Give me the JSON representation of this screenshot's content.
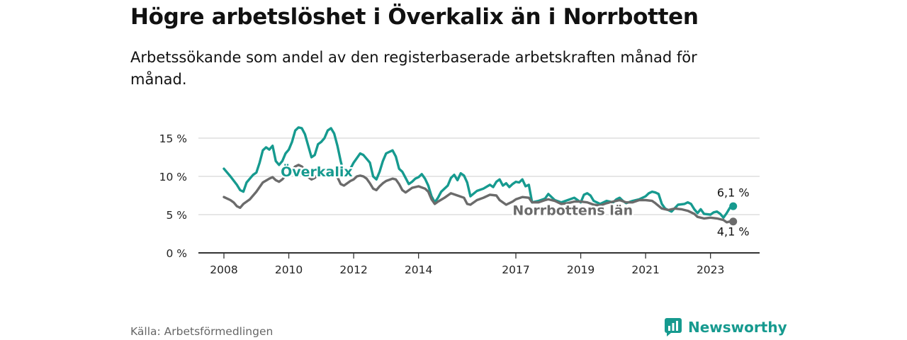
{
  "colors": {
    "overkalix": "#169a8f",
    "norrbotten": "#6b6b6b",
    "grid": "#d7d7d7",
    "axis": "#333333"
  },
  "source": "Källa: Arbetsförmedlingen",
  "brand": {
    "name": "Newsworthy",
    "icon": "newsworthy-logo-icon"
  },
  "chart_data": {
    "type": "line",
    "title": "Högre arbetslöshet i Överkalix än i Norrbotten",
    "subtitle": "Arbetssökande som andel av den registerbaserade arbetskraften månad för månad.",
    "xlabel": "",
    "ylabel": "",
    "x_ticks": [
      "2008",
      "2010",
      "2012",
      "2014",
      "2017",
      "2019",
      "2021",
      "2023"
    ],
    "x_tick_values": [
      2008,
      2010,
      2012,
      2014,
      2017,
      2019,
      2021,
      2023
    ],
    "xlim": [
      2008,
      2023.75
    ],
    "y_ticks": [
      "0 %",
      "5 %",
      "10 %",
      "15 %"
    ],
    "y_tick_values": [
      0,
      5,
      10,
      15
    ],
    "ylim": [
      0,
      15
    ],
    "grid": true,
    "end_labels": {
      "overkalix": "6,1 %",
      "norrbotten": "4,1 %"
    },
    "series": [
      {
        "key": "overkalix",
        "name": "Överkalix",
        "points": [
          [
            2008.0,
            11.0
          ],
          [
            2008.2,
            10.0
          ],
          [
            2008.4,
            8.9
          ],
          [
            2008.5,
            8.2
          ],
          [
            2008.6,
            8.0
          ],
          [
            2008.7,
            9.2
          ],
          [
            2008.9,
            10.2
          ],
          [
            2009.0,
            10.5
          ],
          [
            2009.1,
            11.8
          ],
          [
            2009.2,
            13.4
          ],
          [
            2009.3,
            13.8
          ],
          [
            2009.4,
            13.5
          ],
          [
            2009.5,
            14.0
          ],
          [
            2009.6,
            12.0
          ],
          [
            2009.7,
            11.5
          ],
          [
            2009.8,
            12.0
          ],
          [
            2009.9,
            13.0
          ],
          [
            2010.0,
            13.5
          ],
          [
            2010.1,
            14.5
          ],
          [
            2010.2,
            16.0
          ],
          [
            2010.3,
            16.4
          ],
          [
            2010.4,
            16.3
          ],
          [
            2010.5,
            15.5
          ],
          [
            2010.6,
            14.0
          ],
          [
            2010.7,
            12.5
          ],
          [
            2010.8,
            12.8
          ],
          [
            2010.9,
            14.2
          ],
          [
            2011.0,
            14.5
          ],
          [
            2011.1,
            15.0
          ],
          [
            2011.2,
            16.0
          ],
          [
            2011.3,
            16.3
          ],
          [
            2011.4,
            15.6
          ],
          [
            2011.5,
            14.0
          ],
          [
            2011.6,
            12.0
          ],
          [
            2011.7,
            10.3
          ],
          [
            2011.8,
            10.6
          ],
          [
            2011.9,
            11.0
          ],
          [
            2012.0,
            11.8
          ],
          [
            2012.1,
            12.4
          ],
          [
            2012.2,
            13.0
          ],
          [
            2012.3,
            12.8
          ],
          [
            2012.4,
            12.3
          ],
          [
            2012.5,
            11.8
          ],
          [
            2012.6,
            10.0
          ],
          [
            2012.7,
            9.6
          ],
          [
            2012.8,
            10.6
          ],
          [
            2012.9,
            12.0
          ],
          [
            2013.0,
            13.0
          ],
          [
            2013.1,
            13.2
          ],
          [
            2013.2,
            13.4
          ],
          [
            2013.3,
            12.6
          ],
          [
            2013.4,
            11.0
          ],
          [
            2013.5,
            10.6
          ],
          [
            2013.6,
            9.8
          ],
          [
            2013.7,
            9.0
          ],
          [
            2013.8,
            9.3
          ],
          [
            2013.9,
            9.7
          ],
          [
            2014.0,
            9.9
          ],
          [
            2014.1,
            10.3
          ],
          [
            2014.2,
            9.7
          ],
          [
            2014.3,
            8.8
          ],
          [
            2014.4,
            7.4
          ],
          [
            2014.5,
            6.6
          ],
          [
            2014.6,
            7.2
          ],
          [
            2014.7,
            8.0
          ],
          [
            2014.9,
            8.8
          ],
          [
            2015.0,
            9.8
          ],
          [
            2015.1,
            10.2
          ],
          [
            2015.2,
            9.5
          ],
          [
            2015.3,
            10.4
          ],
          [
            2015.4,
            10.1
          ],
          [
            2015.5,
            9.2
          ],
          [
            2015.6,
            7.4
          ],
          [
            2015.8,
            8.1
          ],
          [
            2016.0,
            8.4
          ],
          [
            2016.2,
            8.9
          ],
          [
            2016.3,
            8.6
          ],
          [
            2016.4,
            9.3
          ],
          [
            2016.5,
            9.6
          ],
          [
            2016.6,
            8.8
          ],
          [
            2016.7,
            9.1
          ],
          [
            2016.8,
            8.6
          ],
          [
            2016.9,
            9.0
          ],
          [
            2017.0,
            9.3
          ],
          [
            2017.1,
            9.2
          ],
          [
            2017.2,
            9.6
          ],
          [
            2017.3,
            8.7
          ],
          [
            2017.4,
            8.9
          ],
          [
            2017.5,
            6.6
          ],
          [
            2017.7,
            6.8
          ],
          [
            2017.9,
            7.1
          ],
          [
            2018.0,
            7.7
          ],
          [
            2018.1,
            7.3
          ],
          [
            2018.2,
            6.9
          ],
          [
            2018.4,
            6.6
          ],
          [
            2018.6,
            6.9
          ],
          [
            2018.8,
            7.2
          ],
          [
            2019.0,
            6.6
          ],
          [
            2019.1,
            7.6
          ],
          [
            2019.2,
            7.8
          ],
          [
            2019.3,
            7.5
          ],
          [
            2019.4,
            6.8
          ],
          [
            2019.6,
            6.4
          ],
          [
            2019.8,
            6.8
          ],
          [
            2020.0,
            6.6
          ],
          [
            2020.1,
            7.0
          ],
          [
            2020.2,
            7.2
          ],
          [
            2020.3,
            6.8
          ],
          [
            2020.4,
            6.5
          ],
          [
            2020.6,
            6.8
          ],
          [
            2020.8,
            7.0
          ],
          [
            2021.0,
            7.4
          ],
          [
            2021.1,
            7.8
          ],
          [
            2021.2,
            8.0
          ],
          [
            2021.3,
            7.9
          ],
          [
            2021.4,
            7.7
          ],
          [
            2021.5,
            6.4
          ],
          [
            2021.6,
            5.8
          ],
          [
            2021.8,
            5.4
          ],
          [
            2022.0,
            6.3
          ],
          [
            2022.2,
            6.4
          ],
          [
            2022.3,
            6.6
          ],
          [
            2022.4,
            6.4
          ],
          [
            2022.5,
            5.7
          ],
          [
            2022.6,
            5.2
          ],
          [
            2022.7,
            5.7
          ],
          [
            2022.8,
            5.1
          ],
          [
            2023.0,
            5.0
          ],
          [
            2023.1,
            5.3
          ],
          [
            2023.2,
            5.4
          ],
          [
            2023.3,
            5.1
          ],
          [
            2023.4,
            4.6
          ],
          [
            2023.5,
            5.2
          ],
          [
            2023.6,
            5.9
          ],
          [
            2023.7,
            6.1
          ]
        ]
      },
      {
        "key": "norrbotten",
        "name": "Norrbottens län",
        "points": [
          [
            2008.0,
            7.3
          ],
          [
            2008.2,
            6.9
          ],
          [
            2008.3,
            6.6
          ],
          [
            2008.4,
            6.1
          ],
          [
            2008.5,
            5.9
          ],
          [
            2008.6,
            6.4
          ],
          [
            2008.8,
            7.0
          ],
          [
            2009.0,
            8.0
          ],
          [
            2009.2,
            9.2
          ],
          [
            2009.4,
            9.7
          ],
          [
            2009.5,
            9.9
          ],
          [
            2009.6,
            9.5
          ],
          [
            2009.7,
            9.3
          ],
          [
            2009.8,
            9.6
          ],
          [
            2009.9,
            10.1
          ],
          [
            2010.0,
            10.3
          ],
          [
            2010.1,
            10.8
          ],
          [
            2010.2,
            11.3
          ],
          [
            2010.3,
            11.5
          ],
          [
            2010.4,
            11.3
          ],
          [
            2010.5,
            10.8
          ],
          [
            2010.6,
            9.9
          ],
          [
            2010.7,
            9.6
          ],
          [
            2010.8,
            9.8
          ],
          [
            2010.9,
            10.2
          ],
          [
            2011.0,
            10.4
          ],
          [
            2011.1,
            10.6
          ],
          [
            2011.2,
            11.0
          ],
          [
            2011.3,
            10.8
          ],
          [
            2011.4,
            10.5
          ],
          [
            2011.5,
            9.9
          ],
          [
            2011.6,
            9.0
          ],
          [
            2011.7,
            8.8
          ],
          [
            2011.8,
            9.1
          ],
          [
            2011.9,
            9.4
          ],
          [
            2012.0,
            9.6
          ],
          [
            2012.1,
            10.0
          ],
          [
            2012.2,
            10.1
          ],
          [
            2012.3,
            10.0
          ],
          [
            2012.4,
            9.7
          ],
          [
            2012.5,
            9.1
          ],
          [
            2012.6,
            8.4
          ],
          [
            2012.7,
            8.2
          ],
          [
            2012.8,
            8.7
          ],
          [
            2012.9,
            9.1
          ],
          [
            2013.0,
            9.4
          ],
          [
            2013.2,
            9.7
          ],
          [
            2013.3,
            9.6
          ],
          [
            2013.4,
            9.0
          ],
          [
            2013.5,
            8.2
          ],
          [
            2013.6,
            7.9
          ],
          [
            2013.8,
            8.5
          ],
          [
            2014.0,
            8.7
          ],
          [
            2014.2,
            8.4
          ],
          [
            2014.3,
            8.0
          ],
          [
            2014.4,
            7.0
          ],
          [
            2014.5,
            6.4
          ],
          [
            2014.6,
            6.7
          ],
          [
            2014.8,
            7.2
          ],
          [
            2015.0,
            7.8
          ],
          [
            2015.2,
            7.5
          ],
          [
            2015.4,
            7.2
          ],
          [
            2015.5,
            6.4
          ],
          [
            2015.6,
            6.3
          ],
          [
            2015.8,
            6.9
          ],
          [
            2016.0,
            7.2
          ],
          [
            2016.2,
            7.6
          ],
          [
            2016.4,
            7.5
          ],
          [
            2016.5,
            6.9
          ],
          [
            2016.7,
            6.3
          ],
          [
            2016.9,
            6.7
          ],
          [
            2017.0,
            7.0
          ],
          [
            2017.2,
            7.3
          ],
          [
            2017.4,
            7.2
          ],
          [
            2017.5,
            6.6
          ],
          [
            2017.7,
            6.6
          ],
          [
            2017.9,
            6.9
          ],
          [
            2018.0,
            7.0
          ],
          [
            2018.2,
            6.8
          ],
          [
            2018.4,
            6.4
          ],
          [
            2018.6,
            6.5
          ],
          [
            2018.8,
            6.7
          ],
          [
            2019.0,
            6.7
          ],
          [
            2019.2,
            6.6
          ],
          [
            2019.4,
            6.3
          ],
          [
            2019.6,
            6.2
          ],
          [
            2019.8,
            6.5
          ],
          [
            2020.0,
            6.7
          ],
          [
            2020.2,
            6.9
          ],
          [
            2020.4,
            6.6
          ],
          [
            2020.6,
            6.6
          ],
          [
            2020.8,
            6.9
          ],
          [
            2021.0,
            6.9
          ],
          [
            2021.2,
            6.8
          ],
          [
            2021.3,
            6.5
          ],
          [
            2021.5,
            5.8
          ],
          [
            2021.7,
            5.6
          ],
          [
            2021.9,
            5.8
          ],
          [
            2022.1,
            5.7
          ],
          [
            2022.3,
            5.5
          ],
          [
            2022.5,
            5.1
          ],
          [
            2022.6,
            4.7
          ],
          [
            2022.8,
            4.5
          ],
          [
            2023.0,
            4.6
          ],
          [
            2023.2,
            4.5
          ],
          [
            2023.4,
            4.3
          ],
          [
            2023.5,
            4.0
          ],
          [
            2023.6,
            4.1
          ],
          [
            2023.7,
            4.1
          ]
        ]
      }
    ]
  }
}
